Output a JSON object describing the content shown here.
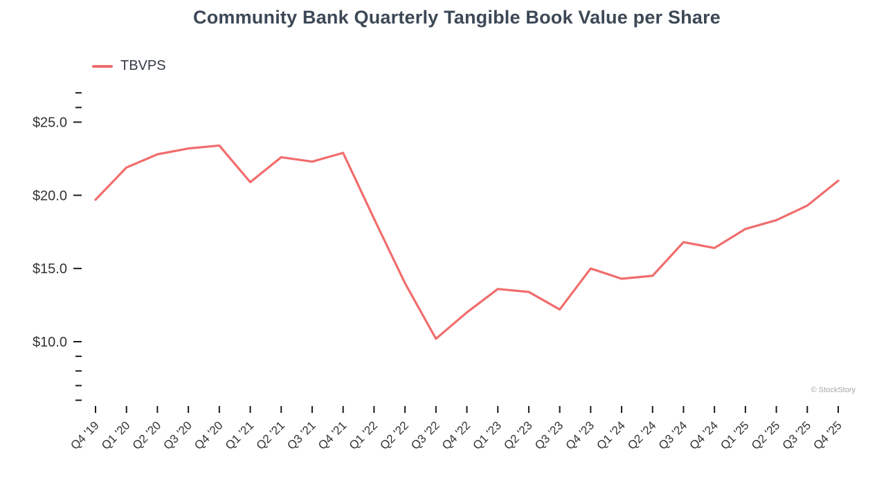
{
  "chart_data": {
    "type": "line",
    "title": "Community Bank Quarterly Tangible Book Value per Share",
    "categories": [
      "Q4 '19",
      "Q1 '20",
      "Q2 '20",
      "Q3 '20",
      "Q4 '20",
      "Q1 '21",
      "Q2 '21",
      "Q3 '21",
      "Q4 '21",
      "Q1 '22",
      "Q2 '22",
      "Q3 '22",
      "Q4 '22",
      "Q1 '23",
      "Q2 '23",
      "Q3 '23",
      "Q4 '23",
      "Q1 '24",
      "Q2 '24",
      "Q3 '24",
      "Q4 '24",
      "Q1 '25",
      "Q2 '25",
      "Q3 '25",
      "Q4 '25"
    ],
    "series": [
      {
        "name": "TBVPS",
        "color": "#f16c6c",
        "values": [
          19.7,
          21.9,
          22.8,
          23.2,
          23.4,
          20.9,
          22.6,
          22.3,
          22.9,
          18.4,
          14.0,
          10.2,
          12.0,
          13.6,
          13.4,
          12.2,
          15.0,
          14.3,
          14.5,
          16.8,
          16.4,
          17.7,
          18.3,
          19.3,
          21.0
        ]
      }
    ],
    "xlabel": "",
    "ylabel": "",
    "ylim": [
      5.7,
      27.2
    ],
    "yaxis": {
      "major_values": [
        25,
        20,
        15,
        10
      ],
      "major_labels": [
        "$25.0",
        "$20.0",
        "$15.0",
        "$10.0"
      ],
      "minor_values": [
        27,
        26,
        9,
        8,
        7,
        6
      ]
    },
    "grid": false,
    "legend_position": "top-left",
    "watermark": "© StockStory"
  },
  "colors": {
    "line": "#f16c6c",
    "title": "#3d4856",
    "axis_text": "#333333",
    "tick": "#1a1a1a",
    "watermark": "#a6a6a6",
    "background": "#ffffff"
  }
}
